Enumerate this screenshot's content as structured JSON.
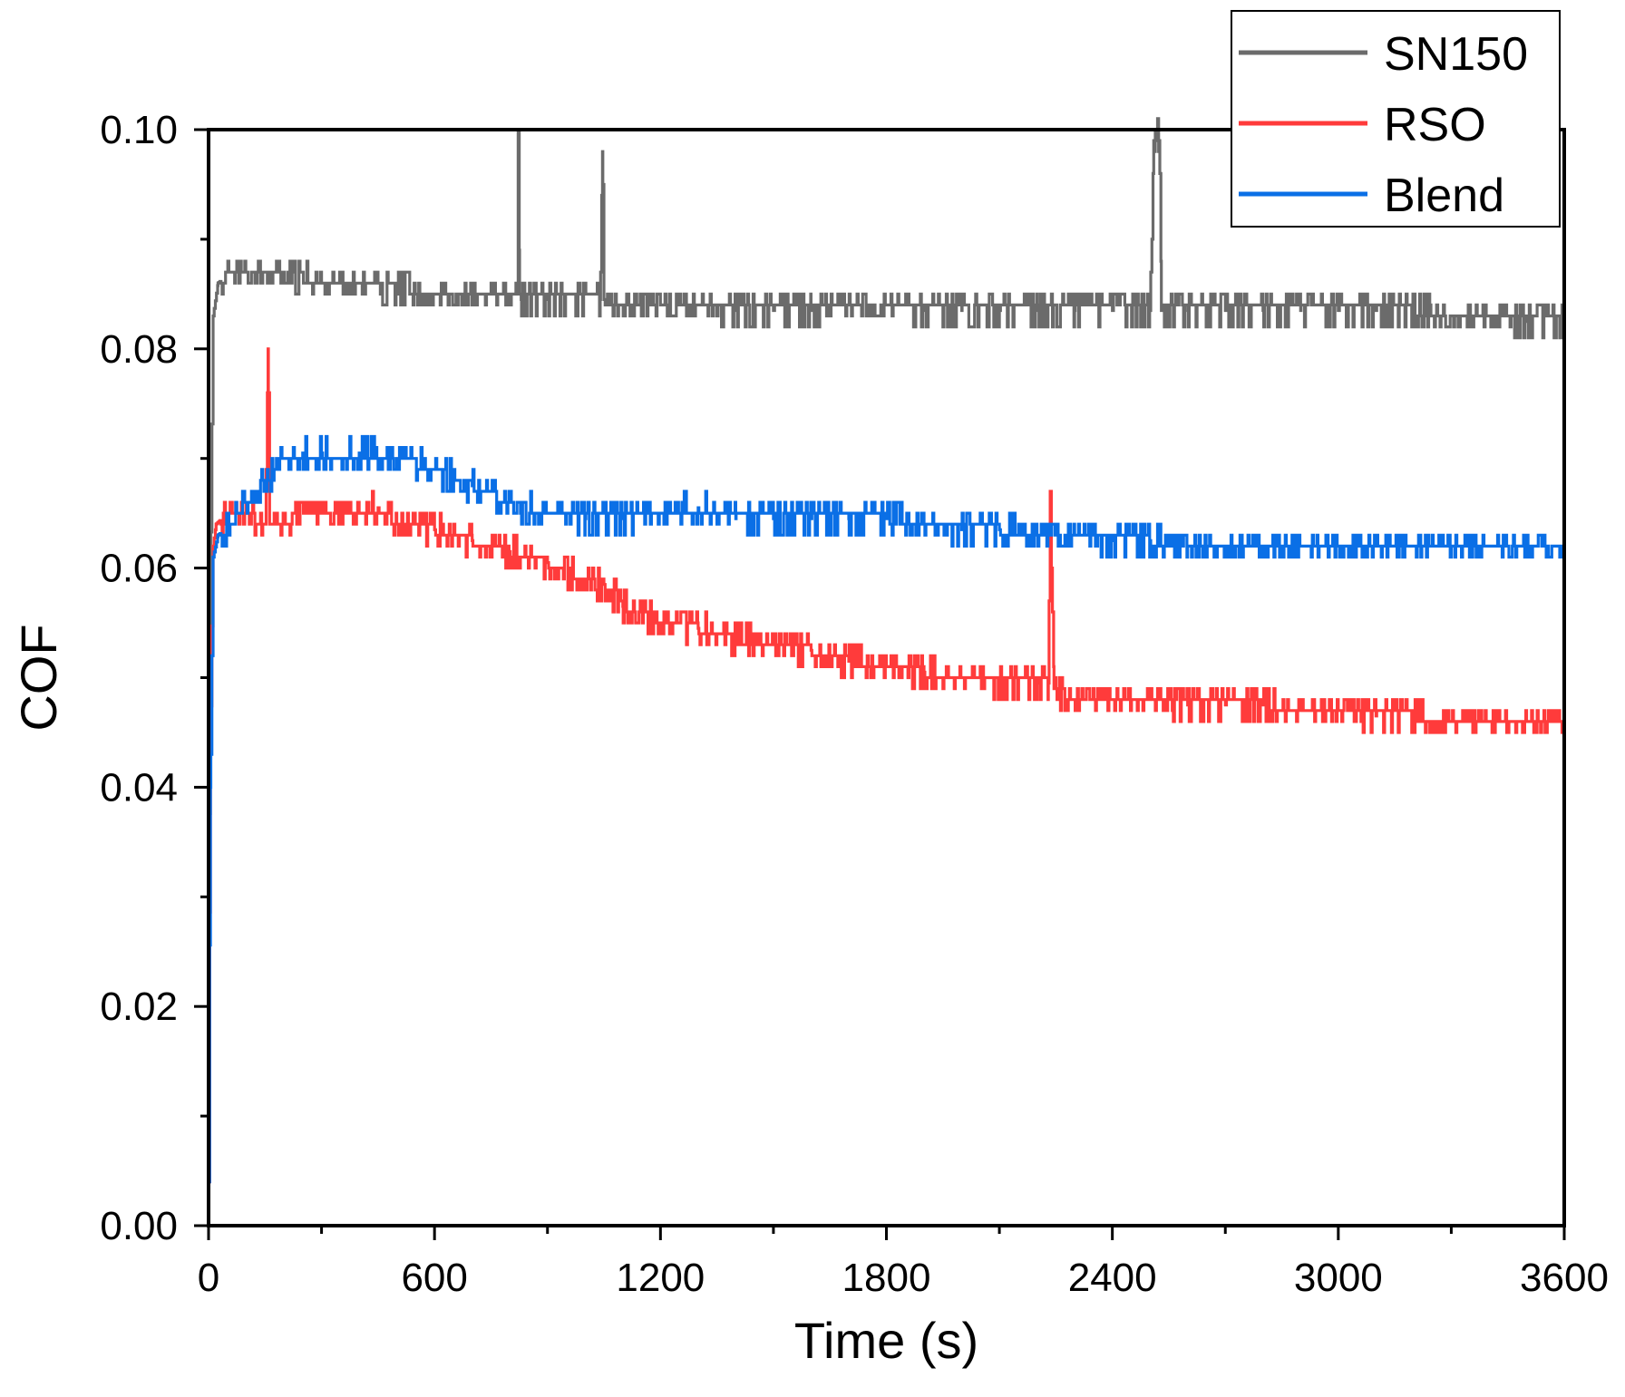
{
  "chart_data": {
    "type": "line",
    "title": "",
    "xlabel": "Time (s)",
    "ylabel": "COF",
    "xlim": [
      0,
      3600
    ],
    "ylim": [
      0.0,
      0.1
    ],
    "xticks": [
      0,
      600,
      1200,
      1800,
      2400,
      3000,
      3600
    ],
    "yticks": [
      0.0,
      0.02,
      0.04,
      0.06,
      0.08,
      0.1
    ],
    "xtick_labels": [
      "0",
      "600",
      "1200",
      "1800",
      "2400",
      "3000",
      "3600"
    ],
    "ytick_labels": [
      "0.00",
      "0.02",
      "0.04",
      "0.06",
      "0.08",
      "0.10"
    ],
    "grid": false,
    "legend_position": "top-right",
    "series": [
      {
        "name": "SN150",
        "color": "#6b6b6b",
        "noise": 0.0012,
        "x": [
          0,
          5,
          12,
          25,
          60,
          120,
          200,
          300,
          400,
          500,
          600,
          700,
          820,
          822,
          826,
          830,
          900,
          1040,
          1046,
          1050,
          1056,
          1100,
          1200,
          1300,
          1400,
          1500,
          1600,
          1700,
          1800,
          1900,
          2000,
          2100,
          2200,
          2300,
          2400,
          2500,
          2510,
          2515,
          2525,
          2530,
          2600,
          2700,
          2800,
          2900,
          3000,
          3100,
          3200,
          3300,
          3400,
          3500,
          3600
        ],
        "y": [
          0.004,
          0.06,
          0.083,
          0.086,
          0.087,
          0.087,
          0.087,
          0.086,
          0.086,
          0.0855,
          0.085,
          0.085,
          0.085,
          0.1,
          0.085,
          0.0845,
          0.0845,
          0.0845,
          0.098,
          0.0845,
          0.084,
          0.084,
          0.084,
          0.084,
          0.0835,
          0.0835,
          0.0835,
          0.084,
          0.084,
          0.0835,
          0.0835,
          0.0835,
          0.0835,
          0.0835,
          0.0835,
          0.0835,
          0.099,
          0.1,
          0.099,
          0.0835,
          0.0835,
          0.0835,
          0.0835,
          0.0835,
          0.0835,
          0.0835,
          0.0835,
          0.083,
          0.083,
          0.0825,
          0.0825
        ]
      },
      {
        "name": "RSO",
        "color": "#ff3b3b",
        "noise": 0.0012,
        "x": [
          0,
          5,
          12,
          20,
          50,
          100,
          150,
          158,
          162,
          168,
          200,
          300,
          400,
          450,
          500,
          600,
          700,
          800,
          900,
          1000,
          1050,
          1100,
          1200,
          1300,
          1400,
          1500,
          1600,
          1700,
          1800,
          1900,
          2000,
          2100,
          2200,
          2230,
          2235,
          2245,
          2300,
          2400,
          2500,
          2600,
          2700,
          2800,
          2900,
          3000,
          3100,
          3200,
          3300,
          3400,
          3500,
          3600
        ],
        "y": [
          0.004,
          0.045,
          0.062,
          0.064,
          0.065,
          0.065,
          0.064,
          0.08,
          0.064,
          0.064,
          0.064,
          0.065,
          0.065,
          0.0655,
          0.064,
          0.0635,
          0.0625,
          0.0615,
          0.0605,
          0.059,
          0.0585,
          0.0565,
          0.055,
          0.0545,
          0.0535,
          0.053,
          0.0525,
          0.0515,
          0.051,
          0.0505,
          0.05,
          0.0495,
          0.0495,
          0.0495,
          0.067,
          0.049,
          0.048,
          0.048,
          0.048,
          0.0475,
          0.0475,
          0.0475,
          0.047,
          0.047,
          0.0465,
          0.0465,
          0.046,
          0.046,
          0.046,
          0.046
        ]
      },
      {
        "name": "Blend",
        "color": "#0a6fe6",
        "noise": 0.0012,
        "x": [
          0,
          5,
          12,
          25,
          60,
          100,
          150,
          200,
          250,
          300,
          400,
          500,
          600,
          700,
          800,
          900,
          1000,
          1100,
          1200,
          1300,
          1400,
          1500,
          1600,
          1700,
          1800,
          1900,
          2000,
          2100,
          2200,
          2300,
          2400,
          2500,
          2600,
          2700,
          2800,
          2900,
          3000,
          3100,
          3200,
          3300,
          3400,
          3500,
          3600
        ],
        "y": [
          0.004,
          0.04,
          0.061,
          0.063,
          0.064,
          0.066,
          0.068,
          0.07,
          0.0705,
          0.0705,
          0.0705,
          0.07,
          0.069,
          0.0675,
          0.066,
          0.065,
          0.0645,
          0.0645,
          0.065,
          0.0655,
          0.0645,
          0.0645,
          0.0645,
          0.0645,
          0.0645,
          0.064,
          0.0635,
          0.0635,
          0.063,
          0.063,
          0.0625,
          0.0625,
          0.062,
          0.062,
          0.062,
          0.062,
          0.062,
          0.062,
          0.062,
          0.062,
          0.062,
          0.062,
          0.062
        ]
      }
    ]
  }
}
